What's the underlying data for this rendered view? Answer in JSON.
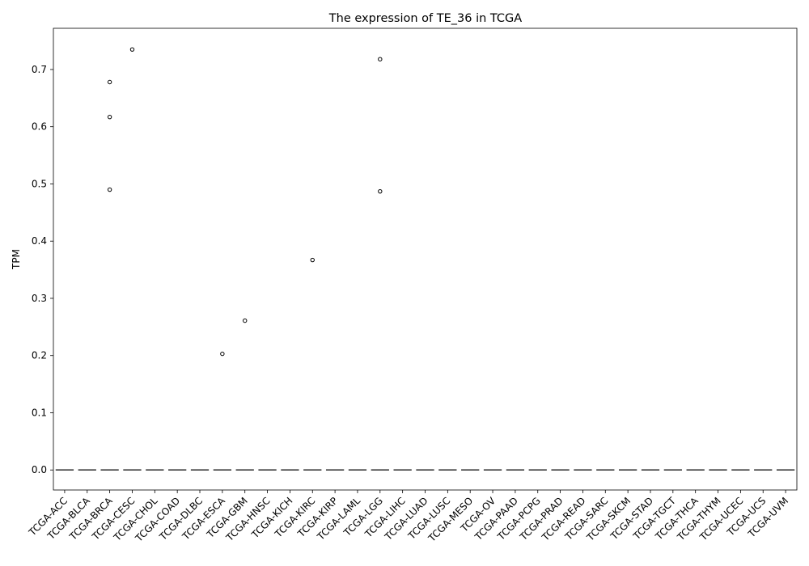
{
  "chart_data": {
    "type": "box",
    "title": "The expression of TE_36 in TCGA",
    "xlabel": "",
    "ylabel": "TPM",
    "ylim": [
      -0.035,
      0.772
    ],
    "yticks": [
      0.0,
      0.1,
      0.2,
      0.3,
      0.4,
      0.5,
      0.6,
      0.7
    ],
    "ytick_labels": [
      "0.0",
      "0.1",
      "0.2",
      "0.3",
      "0.4",
      "0.5",
      "0.6",
      "0.7"
    ],
    "categories": [
      "TCGA-ACC",
      "TCGA-BLCA",
      "TCGA-BRCA",
      "TCGA-CESC",
      "TCGA-CHOL",
      "TCGA-COAD",
      "TCGA-DLBC",
      "TCGA-ESCA",
      "TCGA-GBM",
      "TCGA-HNSC",
      "TCGA-KICH",
      "TCGA-KIRC",
      "TCGA-KIRP",
      "TCGA-LAML",
      "TCGA-LGG",
      "TCGA-LIHC",
      "TCGA-LUAD",
      "TCGA-LUSC",
      "TCGA-MESO",
      "TCGA-OV",
      "TCGA-PAAD",
      "TCGA-PCPG",
      "TCGA-PRAD",
      "TCGA-READ",
      "TCGA-SARC",
      "TCGA-SKCM",
      "TCGA-STAD",
      "TCGA-TGCT",
      "TCGA-THCA",
      "TCGA-THYM",
      "TCGA-UCEC",
      "TCGA-UCS",
      "TCGA-UVM"
    ],
    "medians": [
      0,
      0,
      0,
      0,
      0,
      0,
      0,
      0,
      0,
      0,
      0,
      0,
      0,
      0,
      0,
      0,
      0,
      0,
      0,
      0,
      0,
      0,
      0,
      0,
      0,
      0,
      0,
      0,
      0,
      0,
      0,
      0,
      0
    ],
    "outliers": [
      {
        "category": "TCGA-BRCA",
        "values": [
          0.678,
          0.617,
          0.49
        ]
      },
      {
        "category": "TCGA-CESC",
        "values": [
          0.735
        ]
      },
      {
        "category": "TCGA-ESCA",
        "values": [
          0.203
        ]
      },
      {
        "category": "TCGA-GBM",
        "values": [
          0.261
        ]
      },
      {
        "category": "TCGA-KIRC",
        "values": [
          0.367
        ]
      },
      {
        "category": "TCGA-LGG",
        "values": [
          0.718,
          0.487
        ]
      }
    ],
    "grid": false
  }
}
